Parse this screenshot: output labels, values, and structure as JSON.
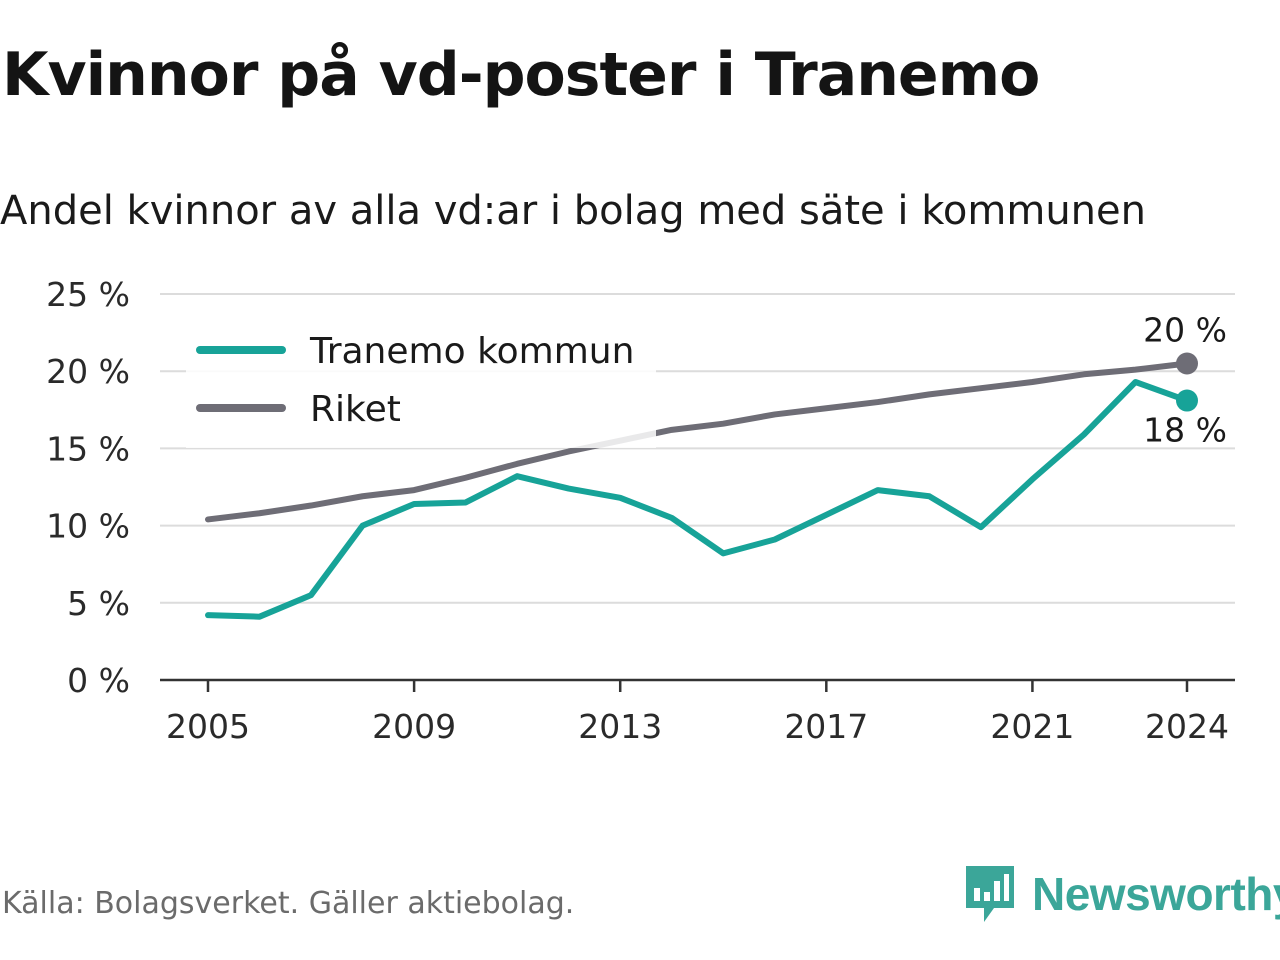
{
  "title": "Kvinnor på vd-poster i Tranemo",
  "subtitle": "Andel kvinnor av alla vd:ar i bolag med säte i kommunen",
  "source": "Källa: Bolagsverket. Gäller aktiebolag.",
  "brand": {
    "name": "Newsworthy",
    "icon": "newsworthy-logo-icon",
    "color": "#3ba699"
  },
  "chart_data": {
    "type": "line",
    "x": [
      2005,
      2006,
      2007,
      2008,
      2009,
      2010,
      2011,
      2012,
      2013,
      2014,
      2015,
      2016,
      2017,
      2018,
      2019,
      2020,
      2021,
      2022,
      2023,
      2024
    ],
    "series": [
      {
        "name": "Tranemo kommun",
        "color": "#17a398",
        "values": [
          4.2,
          4.1,
          5.5,
          10.0,
          11.4,
          11.5,
          13.2,
          12.4,
          11.8,
          10.5,
          8.2,
          9.1,
          10.7,
          12.3,
          11.9,
          9.9,
          13.0,
          15.9,
          19.3,
          18.1
        ],
        "end_label": "18 %"
      },
      {
        "name": "Riket",
        "color": "#6e6d76",
        "values": [
          10.4,
          10.8,
          11.3,
          11.9,
          12.3,
          13.1,
          14.0,
          14.8,
          15.5,
          16.2,
          16.6,
          17.2,
          17.6,
          18.0,
          18.5,
          18.9,
          19.3,
          19.8,
          20.1,
          20.5
        ],
        "end_label": "20 %"
      }
    ],
    "x_ticks": [
      "2005",
      "2009",
      "2013",
      "2017",
      "2021",
      "2024"
    ],
    "y_ticks": [
      "0 %",
      "5 %",
      "10 %",
      "15 %",
      "20 %",
      "25 %"
    ],
    "ylim": [
      0,
      25
    ],
    "grid": true,
    "legend_position": "top-left"
  }
}
